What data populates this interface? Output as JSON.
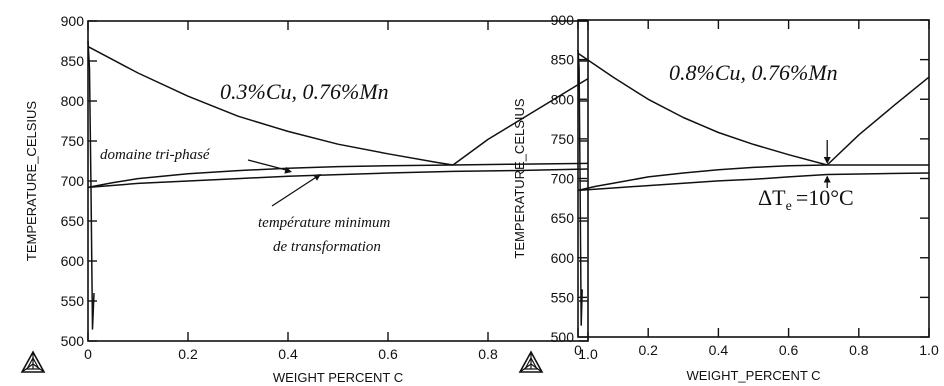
{
  "chart_data": [
    {
      "type": "line",
      "title": "",
      "xlabel": "WEIGHT  PERCENT C",
      "ylabel": "TEMPERATURE_CELSIUS",
      "xlim": [
        0,
        1.0
      ],
      "ylim": [
        500,
        900
      ],
      "xticks": [
        "0",
        "0.2",
        "0.4",
        "0.6",
        "0.8",
        "1.0"
      ],
      "yticks": [
        "500",
        "550",
        "600",
        "650",
        "700",
        "750",
        "800",
        "850",
        "900"
      ],
      "grid": false,
      "annotations": {
        "composition": "0.3%Cu, 0.76%Mn",
        "three_phase": "domaine tri-phasé",
        "min_temp_line1": "température minimum",
        "min_temp_line2": "de transformation"
      },
      "series": [
        {
          "x": [
            0,
            0.1,
            0.2,
            0.3,
            0.4,
            0.5,
            0.6,
            0.7,
            0.73
          ],
          "y": [
            868,
            835,
            806,
            781,
            762,
            746,
            734,
            723,
            720
          ]
        },
        {
          "x": [
            0.73,
            0.8,
            0.9,
            1.0
          ],
          "y": [
            720,
            752,
            790,
            828
          ]
        },
        {
          "x": [
            0,
            0.05,
            0.1,
            0.2,
            0.3,
            0.4,
            0.5,
            0.6,
            0.73,
            0.85,
            1.0
          ],
          "y": [
            692,
            698,
            703,
            709,
            713,
            716,
            718,
            719,
            720,
            721,
            722
          ]
        },
        {
          "x": [
            0,
            0.1,
            0.2,
            0.3,
            0.4,
            0.5,
            0.6,
            0.73,
            0.85,
            1.0
          ],
          "y": [
            692,
            697,
            700,
            703,
            706,
            708,
            710,
            712,
            713,
            715
          ]
        },
        {
          "x": [
            0,
            0.003,
            0.006,
            0.009,
            0.012
          ],
          "y": [
            875,
            840,
            690,
            515,
            560
          ]
        }
      ]
    },
    {
      "type": "line",
      "title": "",
      "xlabel": "WEIGHT_PERCENT C",
      "ylabel": "TEMPERATURE_CELSIUS",
      "xlim": [
        0,
        1.0
      ],
      "ylim": [
        500,
        900
      ],
      "xticks": [
        "0",
        "0.2",
        "0.4",
        "0.6",
        "0.8",
        "1.0"
      ],
      "yticks": [
        "500",
        "550",
        "600",
        "650",
        "700",
        "750",
        "800",
        "850",
        "900"
      ],
      "grid": false,
      "annotations": {
        "composition": "0.8%Cu, 0.76%Mn",
        "delta_symbol": "ΔT",
        "delta_sub": "e",
        "delta_value": "=10°C"
      },
      "series": [
        {
          "x": [
            0,
            0.1,
            0.2,
            0.3,
            0.4,
            0.5,
            0.6,
            0.71
          ],
          "y": [
            858,
            828,
            800,
            777,
            758,
            743,
            730,
            717
          ]
        },
        {
          "x": [
            0.71,
            0.8,
            0.9,
            1.0
          ],
          "y": [
            717,
            755,
            792,
            828
          ]
        },
        {
          "x": [
            0,
            0.05,
            0.1,
            0.2,
            0.3,
            0.4,
            0.5,
            0.6,
            0.71,
            0.85,
            1.0
          ],
          "y": [
            685,
            690,
            694,
            702,
            707,
            711,
            714,
            716,
            717,
            717,
            717
          ]
        },
        {
          "x": [
            0,
            0.1,
            0.2,
            0.3,
            0.4,
            0.5,
            0.6,
            0.71,
            0.85,
            1.0
          ],
          "y": [
            685,
            688,
            691,
            694,
            697,
            699,
            702,
            705,
            706,
            707
          ]
        },
        {
          "x": [
            0,
            0.003,
            0.006,
            0.009,
            0.012
          ],
          "y": [
            862,
            840,
            690,
            515,
            560
          ]
        }
      ]
    }
  ]
}
